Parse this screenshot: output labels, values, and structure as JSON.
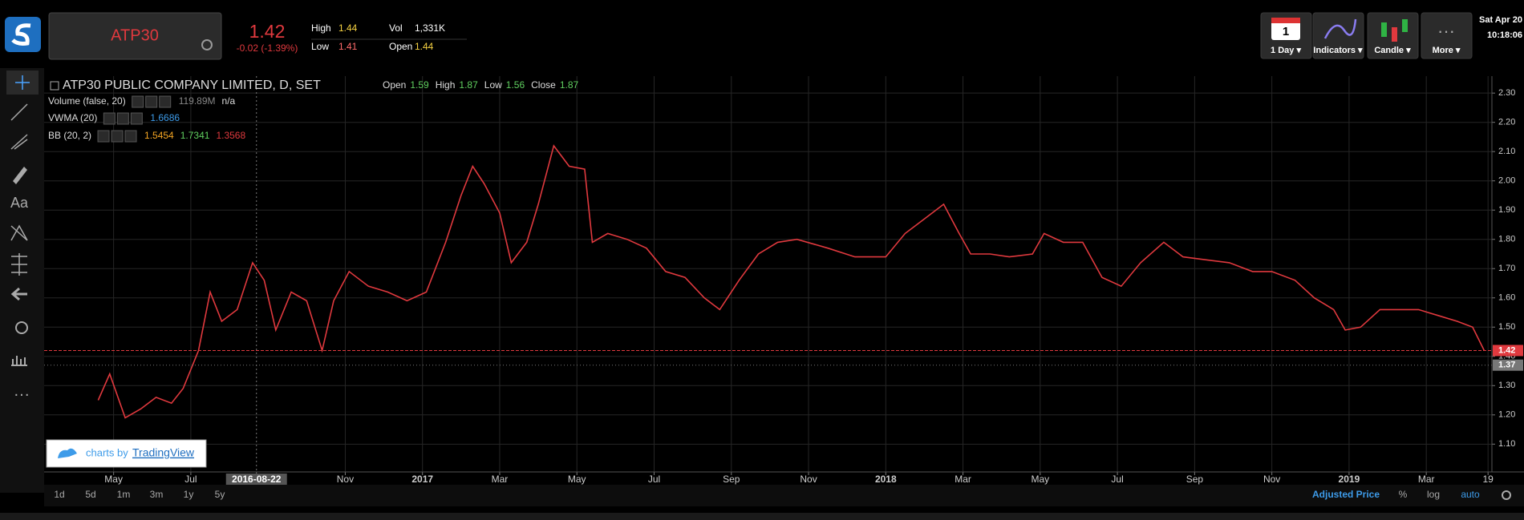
{
  "header": {
    "symbol": "ATP30",
    "price": "1.42",
    "change": "-0.02 (-1.39%)",
    "high_label": "High",
    "high": "1.44",
    "low_label": "Low",
    "low": "1.41",
    "vol_label": "Vol",
    "vol": "1,331K",
    "open_label": "Open",
    "open": "1.44",
    "calendar_day": "1",
    "buttons": [
      "1 Day ▾",
      "Indicators ▾",
      "Candle ▾",
      "More ▾"
    ],
    "date": "Sat Apr 20",
    "time": "10:18:06"
  },
  "side_toolbar": {
    "text_tool": "Aa"
  },
  "legend": {
    "title": "ATP30 PUBLIC COMPANY LIMITED, D, SET",
    "ohlc": [
      [
        "Open",
        "1.59"
      ],
      [
        "High",
        "1.87"
      ],
      [
        "Low",
        "1.56"
      ],
      [
        "Close",
        "1.87"
      ]
    ],
    "volume": [
      "Volume (false, 20)",
      "119.89M",
      "n/a"
    ],
    "vwma": [
      "VWMA (20)",
      "1.6686"
    ],
    "bb": [
      "BB (20, 2)",
      "1.5454",
      "1.7341",
      "1.3568"
    ]
  },
  "chart_data": {
    "type": "line",
    "x": [
      3.6,
      3.9,
      4.3,
      4.7,
      5.1,
      5.5,
      5.8,
      6.2,
      6.5,
      6.8,
      7.2,
      7.6,
      7.9,
      8.2,
      8.6,
      9.0,
      9.4,
      9.7,
      10.1,
      10.6,
      11.1,
      11.6,
      12.1,
      12.6,
      13.0,
      13.3,
      13.6,
      14.0,
      14.3,
      14.7,
      15.0,
      15.4,
      15.8,
      16.2,
      16.4,
      16.8,
      17.3,
      17.8,
      18.3,
      18.8,
      19.3,
      19.7,
      20.2,
      20.7,
      21.2,
      21.7,
      22.5,
      23.2,
      24.0,
      24.5,
      25.0,
      25.5,
      25.9,
      26.2,
      26.7,
      27.2,
      27.8,
      28.1,
      28.6,
      29.1,
      29.6,
      30.1,
      30.6,
      31.2,
      31.7,
      32.3,
      32.9,
      33.5,
      34.0,
      34.6,
      35.1,
      35.6,
      35.9,
      36.3,
      36.8,
      37.3,
      37.8,
      38.3,
      38.8,
      39.2,
      39.5
    ],
    "series": [
      {
        "name": "ATP30",
        "color": "#e0393e",
        "values": [
          1.25,
          1.34,
          1.19,
          1.22,
          1.26,
          1.24,
          1.29,
          1.42,
          1.62,
          1.52,
          1.56,
          1.72,
          1.66,
          1.49,
          1.62,
          1.59,
          1.42,
          1.59,
          1.69,
          1.64,
          1.62,
          1.59,
          1.62,
          1.79,
          1.95,
          2.05,
          1.99,
          1.89,
          1.72,
          1.79,
          1.92,
          2.12,
          2.05,
          2.04,
          1.79,
          1.82,
          1.8,
          1.77,
          1.69,
          1.67,
          1.6,
          1.56,
          1.66,
          1.75,
          1.79,
          1.8,
          1.77,
          1.74,
          1.74,
          1.82,
          1.87,
          1.92,
          1.82,
          1.75,
          1.75,
          1.74,
          1.75,
          1.82,
          1.79,
          1.79,
          1.67,
          1.64,
          1.72,
          1.79,
          1.74,
          1.73,
          1.72,
          1.69,
          1.69,
          1.66,
          1.6,
          1.56,
          1.49,
          1.5,
          1.56,
          1.56,
          1.56,
          1.54,
          1.52,
          1.5,
          1.42
        ]
      }
    ],
    "xlim": [
      2.2,
      39.7
    ],
    "xticks": [
      {
        "value": 4,
        "label": "May"
      },
      {
        "value": 6,
        "label": "Jul"
      },
      {
        "value": 7.7,
        "label": "2016-08-22"
      },
      {
        "value": 10,
        "label": "Nov"
      },
      {
        "value": 12,
        "label": "2017"
      },
      {
        "value": 14,
        "label": "Mar"
      },
      {
        "value": 16,
        "label": "May"
      },
      {
        "value": 18,
        "label": "Jul"
      },
      {
        "value": 20,
        "label": "Sep"
      },
      {
        "value": 22,
        "label": "Nov"
      },
      {
        "value": 24,
        "label": "2018"
      },
      {
        "value": 26,
        "label": "Mar"
      },
      {
        "value": 28,
        "label": "May"
      },
      {
        "value": 30,
        "label": "Jul"
      },
      {
        "value": 32,
        "label": "Sep"
      },
      {
        "value": 34,
        "label": "Nov"
      },
      {
        "value": 36,
        "label": "2019"
      },
      {
        "value": 38,
        "label": "Mar"
      },
      {
        "value": 39.6,
        "label": "19"
      }
    ],
    "ylim": [
      1.005,
      2.358
    ],
    "yticks": [
      {
        "value": 1.1,
        "label": "1.10"
      },
      {
        "value": 1.2,
        "label": "1.20"
      },
      {
        "value": 1.3,
        "label": "1.30"
      },
      {
        "value": 1.4,
        "label": "1.40"
      },
      {
        "value": 1.5,
        "label": "1.50"
      },
      {
        "value": 1.6,
        "label": "1.60"
      },
      {
        "value": 1.7,
        "label": "1.70"
      },
      {
        "value": 1.8,
        "label": "1.80"
      },
      {
        "value": 1.9,
        "label": "1.90"
      },
      {
        "value": 2.0,
        "label": "2.00"
      },
      {
        "value": 2.1,
        "label": "2.10"
      },
      {
        "value": 2.2,
        "label": "2.20"
      },
      {
        "value": 2.3,
        "label": "2.30"
      }
    ],
    "price_lines": [
      {
        "value": 1.42,
        "label": "1.42",
        "color": "#e0393e"
      },
      {
        "value": 1.37,
        "label": "1.37",
        "color": "#777777"
      }
    ],
    "grid": true
  },
  "watermark": {
    "prefix": "charts by",
    "brand": "TradingView"
  },
  "bottom_toolbar": {
    "ranges": [
      "1d",
      "5d",
      "1m",
      "3m",
      "1y",
      "5y"
    ],
    "adjusted": "Adjusted Price",
    "percent": "%",
    "log": "log",
    "auto": "auto"
  }
}
